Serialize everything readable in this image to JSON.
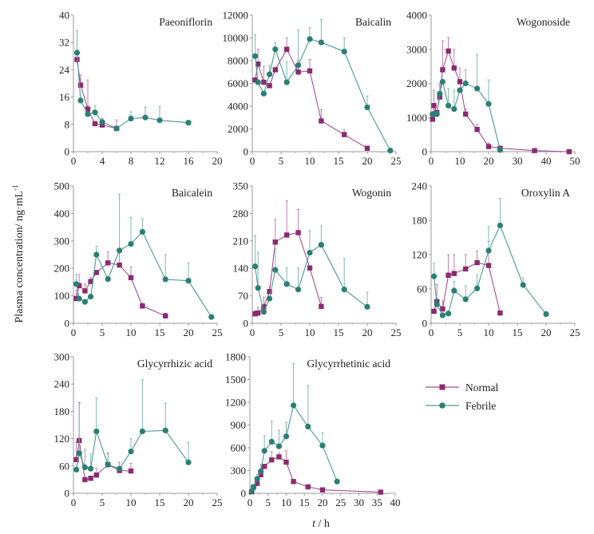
{
  "chart_data": {
    "type": "line",
    "ylabel": "Plasma concentration/ ng·mL",
    "ylabel_superscript": "-1",
    "xlabel_italic": "t",
    "xlabel_rest": " / h",
    "legend": {
      "placement": "bottom-right",
      "entries": [
        {
          "name": "Normal",
          "marker": "square",
          "color": "#8b2a72"
        },
        {
          "name": "Febrile",
          "marker": "circle",
          "color": "#2a7f74"
        }
      ]
    },
    "panels": [
      {
        "title": "Paeoniflorin",
        "xlim": [
          0,
          20
        ],
        "xticks": [
          0,
          4,
          8,
          12,
          16,
          20
        ],
        "ylim": [
          0,
          40
        ],
        "yticks": [
          0,
          8,
          16,
          24,
          32,
          40
        ],
        "series": [
          {
            "name": "Normal",
            "x": [
              0.5,
              1,
              2,
              3,
              4,
              6
            ],
            "y": [
              27,
              19.5,
              12.5,
              8.2,
              7.8,
              6.8
            ],
            "err": [
              0,
              3,
              8.5,
              0,
              2,
              2.5
            ]
          },
          {
            "name": "Febrile",
            "x": [
              0.5,
              1,
              2,
              3,
              4,
              6,
              8,
              10,
              12,
              16
            ],
            "y": [
              29,
              15,
              11,
              11.5,
              8.7,
              6.8,
              9.7,
              10,
              9.2,
              8.5
            ],
            "err": [
              6.5,
              0,
              0,
              2,
              0,
              0,
              2,
              3,
              4,
              0
            ]
          }
        ]
      },
      {
        "title": "Baicalin",
        "xlim": [
          0,
          25
        ],
        "xticks": [
          0,
          5,
          10,
          15,
          20,
          25
        ],
        "ylim": [
          0,
          12000
        ],
        "yticks": [
          0,
          2000,
          4000,
          6000,
          8000,
          10000,
          12000
        ],
        "series": [
          {
            "name": "Normal",
            "x": [
              0.5,
              1,
              2,
              3,
              4,
              6,
              8,
              10,
              12,
              16,
              20
            ],
            "y": [
              6300,
              7700,
              6100,
              5800,
              7200,
              9000,
              7000,
              7100,
              2700,
              1500,
              300
            ],
            "err": [
              0,
              1300,
              1400,
              0,
              0,
              1000,
              1000,
              1000,
              1000,
              400,
              0
            ]
          },
          {
            "name": "Febrile",
            "x": [
              0.5,
              1,
              2,
              3,
              4,
              6,
              8,
              10,
              12,
              16,
              20,
              24
            ],
            "y": [
              8400,
              6100,
              5100,
              6800,
              9000,
              6100,
              7600,
              9900,
              9600,
              8800,
              3900,
              100
            ],
            "err": [
              1900,
              0,
              0,
              800,
              600,
              1800,
              3100,
              1000,
              2000,
              1200,
              1000,
              0
            ]
          }
        ]
      },
      {
        "title": "Wogonoside",
        "xlim": [
          0,
          50
        ],
        "xticks": [
          0,
          10,
          20,
          30,
          40,
          50
        ],
        "ylim": [
          0,
          4000
        ],
        "yticks": [
          0,
          1000,
          2000,
          3000,
          4000
        ],
        "series": [
          {
            "name": "Normal",
            "x": [
              0.5,
              1,
              2,
              3,
              4,
              6,
              8,
              10,
              12,
              16,
              20,
              24,
              36,
              48
            ],
            "y": [
              950,
              1350,
              1150,
              1600,
              2400,
              2950,
              2450,
              2050,
              1100,
              650,
              150,
              100,
              30,
              0
            ],
            "err": [
              0,
              450,
              0,
              350,
              850,
              400,
              550,
              400,
              150,
              150,
              100,
              0,
              0,
              0
            ]
          },
          {
            "name": "Febrile",
            "x": [
              0.5,
              1,
              2,
              3,
              4,
              6,
              8,
              10,
              12,
              16,
              20,
              24
            ],
            "y": [
              1100,
              1100,
              1100,
              1700,
              2050,
              1350,
              1250,
              1800,
              2000,
              1850,
              1400,
              50
            ],
            "err": [
              0,
              0,
              0,
              300,
              0,
              500,
              550,
              0,
              400,
              1000,
              700,
              0
            ]
          }
        ]
      },
      {
        "title": "Baicalein",
        "xlim": [
          0,
          25
        ],
        "xticks": [
          0,
          5,
          10,
          15,
          20,
          25
        ],
        "ylim": [
          0,
          500
        ],
        "yticks": [
          0,
          100,
          200,
          300,
          400,
          500
        ],
        "series": [
          {
            "name": "Normal",
            "x": [
              0.5,
              1,
              2,
              3,
              4,
              6,
              8,
              10,
              12,
              16
            ],
            "y": [
              90,
              137,
              118,
              152,
              185,
              220,
              212,
              166,
              63,
              27
            ],
            "err": [
              30,
              40,
              25,
              15,
              0,
              40,
              50,
              40,
              10,
              10
            ]
          },
          {
            "name": "Febrile",
            "x": [
              0.5,
              1,
              2,
              3,
              4,
              6,
              8,
              10,
              12,
              16,
              20,
              24
            ],
            "y": [
              143,
              90,
              78,
              97,
              250,
              161,
              265,
              289,
              333,
              160,
              155,
              23
            ],
            "err": [
              35,
              0,
              0,
              0,
              30,
              0,
              205,
              97,
              48,
              90,
              65,
              0
            ]
          }
        ]
      },
      {
        "title": "Wogonin",
        "xlim": [
          0,
          25
        ],
        "xticks": [
          0,
          5,
          10,
          15,
          20,
          25
        ],
        "ylim": [
          0,
          350
        ],
        "yticks": [
          0,
          70,
          140,
          210,
          280,
          350
        ],
        "series": [
          {
            "name": "Normal",
            "x": [
              0.5,
              1,
              2,
              3,
              4,
              6,
              8,
              10,
              12
            ],
            "y": [
              24,
              26,
              42,
              81,
              207,
              225,
              231,
              141,
              43
            ],
            "err": [
              8,
              14,
              25,
              13,
              58,
              87,
              59,
              0,
              23
            ]
          },
          {
            "name": "Febrile",
            "x": [
              0.5,
              1,
              2,
              3,
              4,
              6,
              8,
              10,
              12,
              16,
              20
            ],
            "y": [
              145,
              90,
              29,
              63,
              136,
              100,
              86,
              180,
              200,
              86,
              42
            ],
            "err": [
              78,
              91,
              0,
              0,
              54,
              41,
              55,
              56,
              48,
              79,
              37
            ]
          }
        ]
      },
      {
        "title": "Oroxylin A",
        "xlim": [
          0,
          25
        ],
        "xticks": [
          0,
          5,
          10,
          15,
          20,
          25
        ],
        "ylim": [
          0,
          240
        ],
        "yticks": [
          0,
          60,
          120,
          180,
          240
        ],
        "series": [
          {
            "name": "Normal",
            "x": [
              0.5,
              1,
              2,
              3,
              4,
              6,
              8,
              10,
              12
            ],
            "y": [
              21,
              38,
              25,
              84,
              87,
              95,
              106,
              101,
              18
            ],
            "err": [
              0,
              30,
              14,
              36,
              33,
              25,
              20,
              42,
              0
            ]
          },
          {
            "name": "Febrile",
            "x": [
              0.5,
              1,
              2,
              3,
              4,
              6,
              8,
              10,
              12,
              16,
              20
            ],
            "y": [
              82,
              33,
              14,
              17,
              57,
              42,
              61,
              127,
              171,
              67,
              16
            ],
            "err": [
              23,
              0,
              0,
              0,
              16,
              23,
              24,
              42,
              47,
              12,
              0
            ]
          }
        ]
      },
      {
        "title": "Glycyrrhizic acid",
        "xlim": [
          0,
          25
        ],
        "xticks": [
          0,
          5,
          10,
          15,
          20,
          25
        ],
        "ylim": [
          0,
          300
        ],
        "yticks": [
          0,
          60,
          120,
          180,
          240,
          300
        ],
        "series": [
          {
            "name": "Normal",
            "x": [
              0.5,
              1,
              2,
              3,
              4,
              6,
              8,
              10
            ],
            "y": [
              74,
              116,
              30,
              33,
              40,
              63,
              50,
              49
            ],
            "err": [
              40,
              84,
              0,
              0,
              15,
              25,
              18,
              17
            ]
          },
          {
            "name": "Febrile",
            "x": [
              0.5,
              1,
              2,
              3,
              4,
              6,
              8,
              10,
              12,
              16,
              20
            ],
            "y": [
              52,
              88,
              57,
              54,
              136,
              63,
              54,
              92,
              136,
              138,
              68
            ],
            "err": [
              0,
              110,
              40,
              32,
              74,
              26,
              0,
              28,
              113,
              60,
              44
            ]
          }
        ]
      },
      {
        "title": "Glycyrrhetinic acid",
        "xlim": [
          0,
          40
        ],
        "xticks": [
          0,
          5,
          10,
          15,
          20,
          25,
          30,
          35,
          40
        ],
        "ylim": [
          0,
          1800
        ],
        "yticks": [
          0,
          300,
          600,
          900,
          1200,
          1500,
          1800
        ],
        "series": [
          {
            "name": "Normal",
            "x": [
              0.5,
              1,
              2,
              3,
              4,
              6,
              8,
              10,
              12,
              16,
              20,
              36
            ],
            "y": [
              20,
              80,
              130,
              245,
              355,
              440,
              480,
              410,
              155,
              85,
              45,
              15
            ],
            "err": [
              0,
              0,
              30,
              50,
              0,
              110,
              50,
              150,
              0,
              0,
              0,
              0
            ]
          },
          {
            "name": "Febrile",
            "x": [
              0.5,
              1,
              2,
              3,
              4,
              6,
              8,
              10,
              12,
              16,
              20,
              24
            ],
            "y": [
              25,
              85,
              190,
              290,
              560,
              680,
              620,
              750,
              1160,
              880,
              630,
              155
            ],
            "err": [
              0,
              0,
              60,
              90,
              200,
              270,
              210,
              185,
              550,
              540,
              170,
              0
            ]
          }
        ]
      }
    ]
  }
}
